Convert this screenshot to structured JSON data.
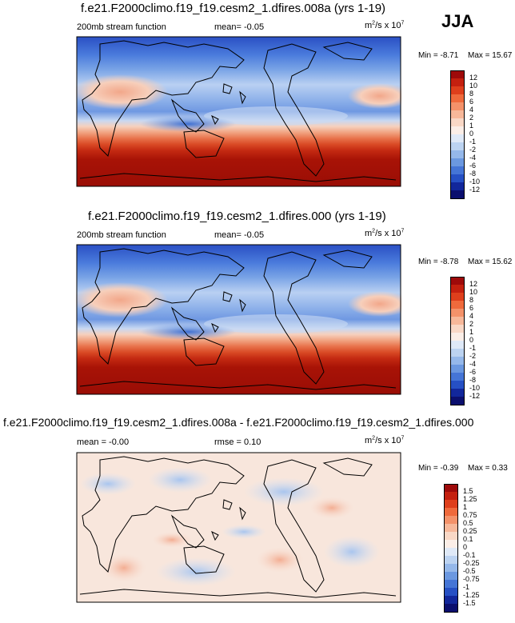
{
  "season": "JJA",
  "panels": [
    {
      "title": "f.e21.F2000climo.f19_f19.cesm2_1.dfires.008a (yrs 1-19)",
      "left_label": "200mb stream function",
      "center_label": "mean=  -0.05",
      "units_base": "m",
      "units_exp": "2",
      "units_mid": "/s x 10",
      "units_exp2": "7",
      "min_label": "Min =  -8.71",
      "max_label": "Max =  15.67"
    },
    {
      "title": "f.e21.F2000climo.f19_f19.cesm2_1.dfires.000 (yrs 1-19)",
      "left_label": "200mb stream function",
      "center_label": "mean=  -0.05",
      "units_base": "m",
      "units_exp": "2",
      "units_mid": "/s x 10",
      "units_exp2": "7",
      "min_label": "Min =  -8.78",
      "max_label": "Max =  15.62"
    },
    {
      "title": "f.e21.F2000climo.f19_f19.cesm2_1.dfires.008a - f.e21.F2000climo.f19_f19.cesm2_1.dfires.000",
      "left_label": "mean =  -0.00",
      "center_label": "rmse =   0.10",
      "units_base": "m",
      "units_exp": "2",
      "units_mid": "/s x 10",
      "units_exp2": "7",
      "min_label": "Min =  -0.39",
      "max_label": "Max =   0.33"
    }
  ],
  "colorbars": {
    "field": {
      "labels": [
        "12",
        "10",
        "8",
        "6",
        "4",
        "2",
        "1",
        "0",
        "-1",
        "-2",
        "-4",
        "-6",
        "-8",
        "-10",
        "-12"
      ],
      "colors": [
        "#9e0a0a",
        "#c4200f",
        "#de3f1c",
        "#ef6a3c",
        "#f4926a",
        "#f7b89a",
        "#f9d8c6",
        "#fbeee7",
        "#dfe9f7",
        "#bcd3f1",
        "#95b8ea",
        "#6b98e0",
        "#4575d6",
        "#2650c4",
        "#12279b",
        "#0b0f6e"
      ]
    },
    "diff": {
      "labels": [
        "1.5",
        "1.25",
        "1",
        "0.75",
        "0.5",
        "0.25",
        "0.1",
        "0",
        "-0.1",
        "-0.25",
        "-0.5",
        "-0.75",
        "-1",
        "-1.25",
        "-1.5"
      ],
      "colors": [
        "#9e0a0a",
        "#c4200f",
        "#de3f1c",
        "#ef6a3c",
        "#f4926a",
        "#f7b89a",
        "#f9d8c6",
        "#fbeee7",
        "#dfe9f7",
        "#bcd3f1",
        "#95b8ea",
        "#6b98e0",
        "#4575d6",
        "#2650c4",
        "#12279b",
        "#0b0f6e"
      ]
    }
  },
  "chart_data": [
    {
      "type": "heatmap",
      "title": "f.e21.F2000climo.f19_f19.cesm2_1.dfires.008a (yrs 1-19)",
      "variable": "200mb stream function",
      "units": "m2/s x 10^7",
      "mean": -0.05,
      "min": -8.71,
      "max": 15.67,
      "levels": [
        -12,
        -10,
        -8,
        -6,
        -4,
        -2,
        -1,
        0,
        1,
        2,
        4,
        6,
        8,
        10,
        12
      ]
    },
    {
      "type": "heatmap",
      "title": "f.e21.F2000climo.f19_f19.cesm2_1.dfires.000 (yrs 1-19)",
      "variable": "200mb stream function",
      "units": "m2/s x 10^7",
      "mean": -0.05,
      "min": -8.78,
      "max": 15.62,
      "levels": [
        -12,
        -10,
        -8,
        -6,
        -4,
        -2,
        -1,
        0,
        1,
        2,
        4,
        6,
        8,
        10,
        12
      ]
    },
    {
      "type": "heatmap",
      "title": "f.e21.F2000climo.f19_f19.cesm2_1.dfires.008a - f.e21.F2000climo.f19_f19.cesm2_1.dfires.000",
      "units": "m2/s x 10^7",
      "mean": -0.0,
      "rmse": 0.1,
      "min": -0.39,
      "max": 0.33,
      "levels": [
        -1.5,
        -1.25,
        -1,
        -0.75,
        -0.5,
        -0.25,
        -0.1,
        0,
        0.1,
        0.25,
        0.5,
        0.75,
        1,
        1.25,
        1.5
      ]
    }
  ]
}
